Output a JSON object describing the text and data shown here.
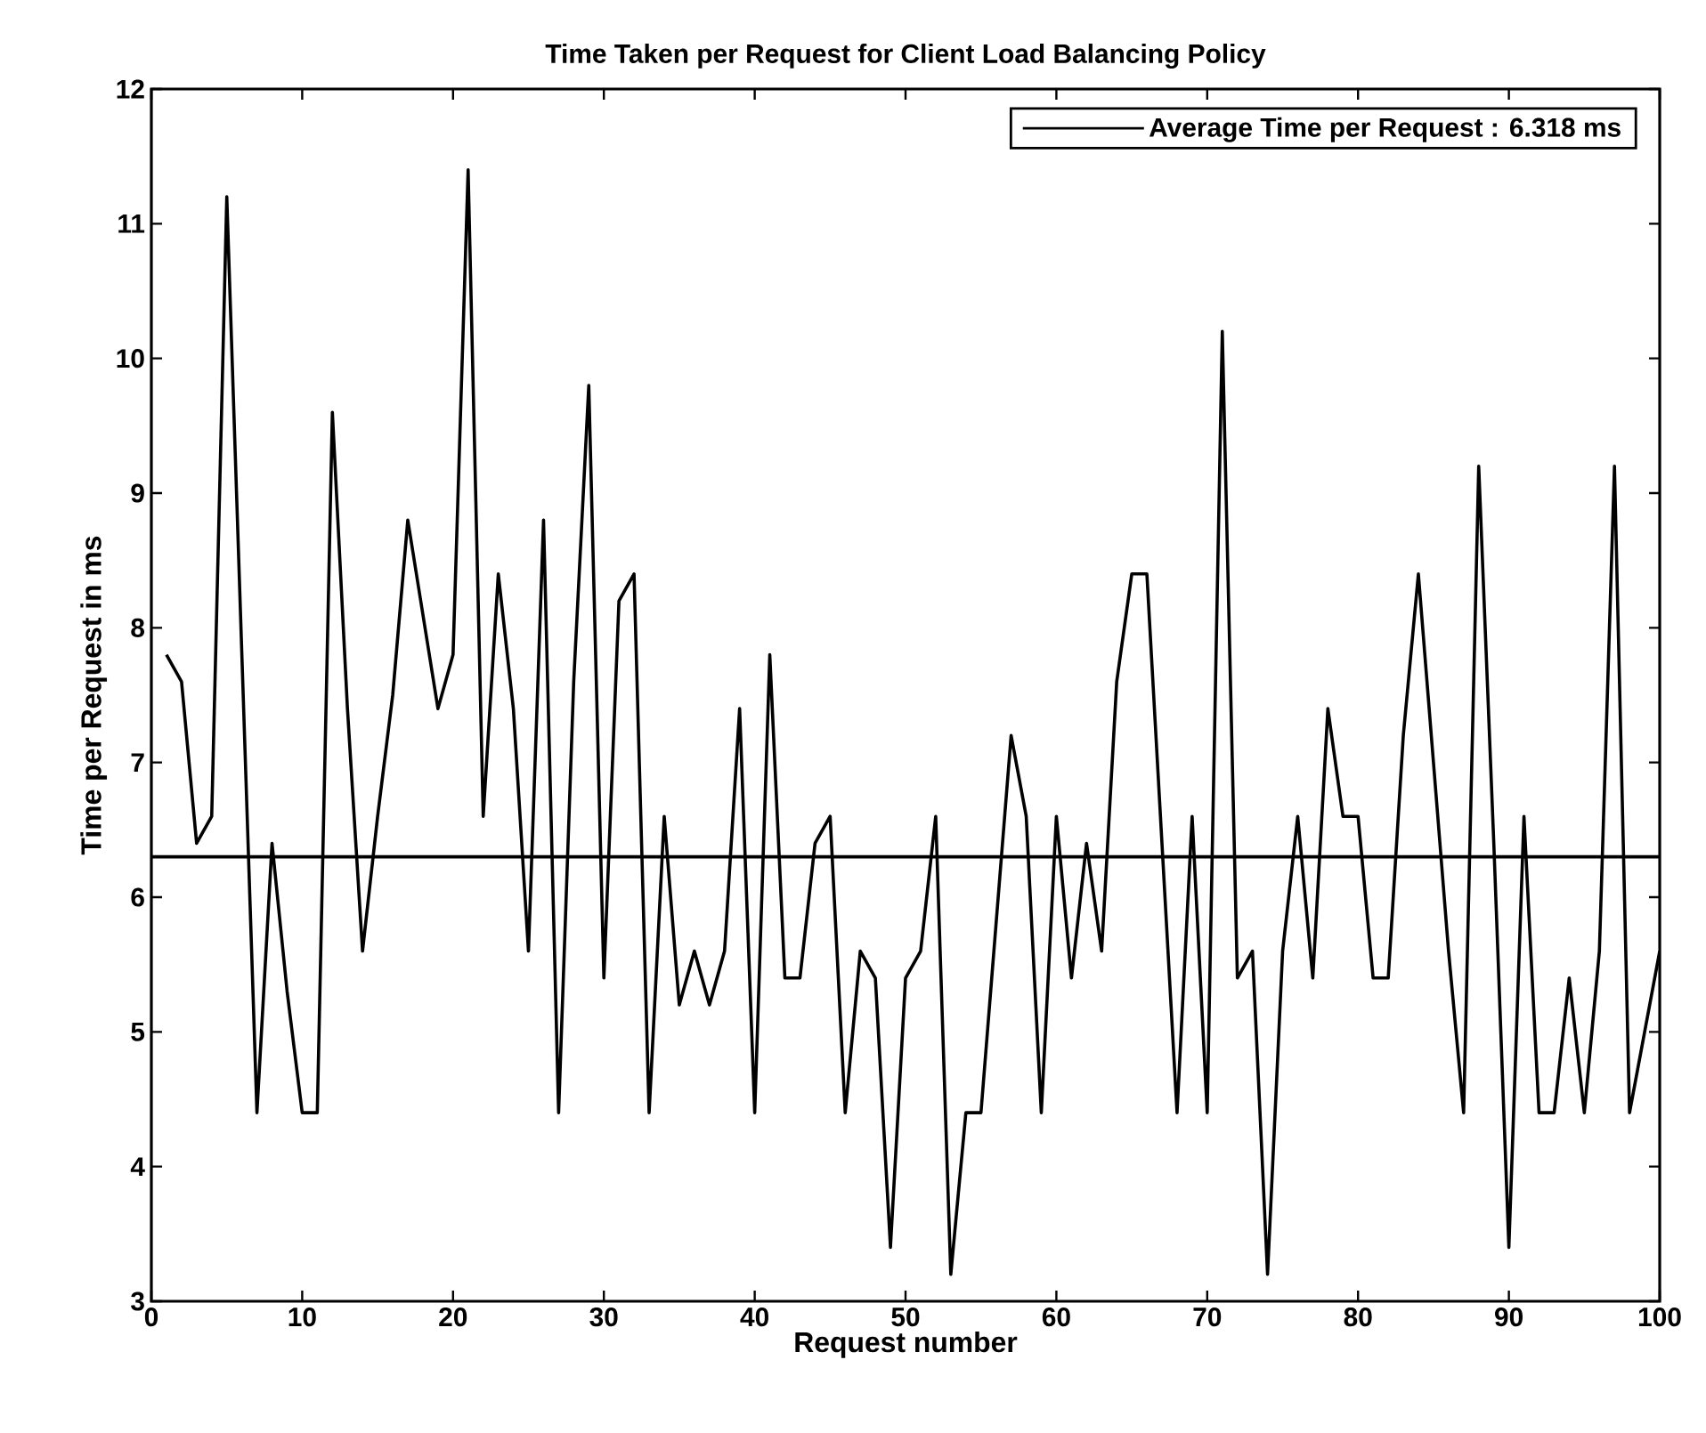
{
  "chart_data": {
    "type": "line",
    "title": "Time Taken per Request for Client Load Balancing Policy",
    "xlabel": "Request number",
    "ylabel": "Time per Request in ms",
    "xlim": [
      0,
      100
    ],
    "ylim": [
      3,
      12
    ],
    "xticks": [
      0,
      10,
      20,
      30,
      40,
      50,
      60,
      70,
      80,
      90,
      100
    ],
    "yticks": [
      3,
      4,
      5,
      6,
      7,
      8,
      9,
      10,
      11,
      12
    ],
    "grid": false,
    "legend": "top right",
    "marker": "none",
    "line_style": "solid",
    "series": [
      {
        "color": "#000000",
        "x": [
          1,
          2,
          3,
          4,
          5,
          6,
          7,
          8,
          9,
          10,
          11,
          12,
          13,
          14,
          15,
          16,
          17,
          18,
          19,
          20,
          21,
          22,
          23,
          24,
          25,
          26,
          27,
          28,
          29,
          30,
          31,
          32,
          33,
          34,
          35,
          36,
          37,
          38,
          39,
          40,
          41,
          42,
          43,
          44,
          45,
          46,
          47,
          48,
          49,
          50,
          51,
          52,
          53,
          54,
          55,
          56,
          57,
          58,
          59,
          60,
          61,
          62,
          63,
          64,
          65,
          66,
          67,
          68,
          69,
          70,
          71,
          72,
          73,
          74,
          75,
          76,
          77,
          78,
          79,
          80,
          81,
          82,
          83,
          84,
          85,
          86,
          87,
          88,
          89,
          90,
          91,
          92,
          93,
          94,
          95,
          96,
          97,
          98,
          99,
          100
        ],
        "values": [
          7.8,
          7.6,
          6.4,
          6.6,
          11.2,
          7.8,
          4.4,
          6.4,
          5.3,
          4.4,
          4.4,
          9.6,
          7.4,
          5.6,
          6.6,
          7.5,
          8.8,
          8.1,
          7.4,
          7.8,
          11.4,
          6.6,
          8.4,
          7.4,
          5.6,
          8.8,
          4.4,
          7.6,
          9.8,
          5.4,
          8.2,
          8.4,
          4.4,
          6.6,
          5.2,
          5.6,
          5.2,
          5.6,
          7.4,
          4.4,
          7.8,
          5.4,
          5.4,
          6.4,
          6.6,
          4.4,
          5.6,
          5.4,
          3.4,
          5.4,
          5.6,
          6.6,
          3.2,
          4.4,
          4.4,
          5.8,
          7.2,
          6.6,
          4.4,
          6.6,
          5.4,
          6.4,
          5.6,
          7.6,
          8.4,
          8.4,
          6.4,
          4.4,
          6.6,
          4.4,
          10.2,
          5.4,
          5.6,
          3.2,
          5.6,
          6.6,
          5.4,
          7.4,
          6.6,
          6.6,
          5.4,
          5.4,
          7.2,
          8.4,
          7.0,
          5.6,
          4.4,
          9.2,
          6.4,
          3.4,
          6.6,
          4.4,
          4.4,
          5.4,
          4.4,
          5.6,
          9.2,
          4.4,
          5.0,
          5.6
        ]
      },
      {
        "name": "Average Time per Request : 6.318 ms",
        "color": "#000000",
        "x": [
          0,
          100
        ],
        "values": [
          6.3,
          6.3
        ]
      }
    ]
  }
}
